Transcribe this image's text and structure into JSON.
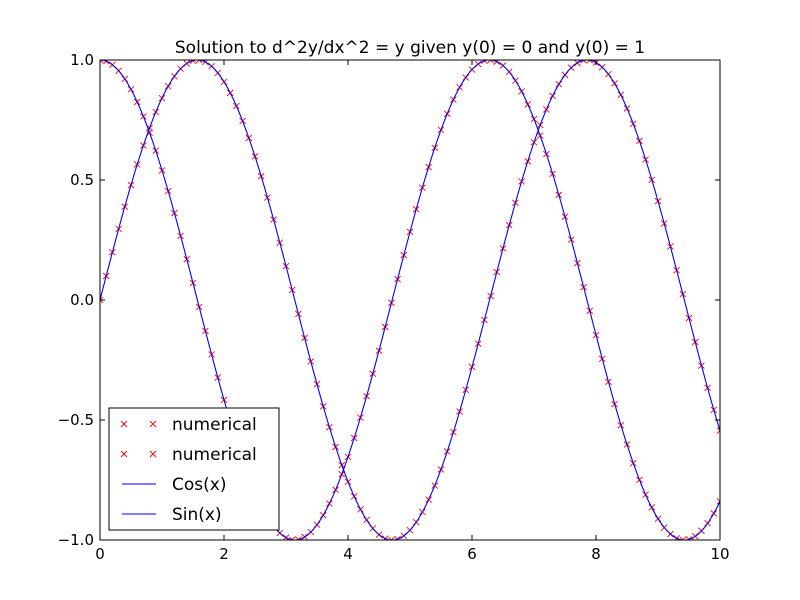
{
  "chart_data": {
    "type": "line",
    "title": "Solution to d^2y/dx^2 = y given y(0) = 0 and y(0) = 1",
    "xlabel": "",
    "ylabel": "",
    "xlim": [
      0,
      10
    ],
    "ylim": [
      -1.0,
      1.0
    ],
    "xticks": [
      "0",
      "2",
      "4",
      "6",
      "8",
      "10"
    ],
    "yticks": [
      "−1.0",
      "−0.5",
      "0.0",
      "0.5",
      "1.0"
    ],
    "grid": false,
    "legend_position": "lower-left",
    "series": [
      {
        "name": "numerical",
        "style": "markers",
        "marker": "x",
        "color": "#ff0000",
        "x": [
          0,
          0.1,
          0.2,
          0.3,
          0.4,
          0.5,
          0.6,
          0.7,
          0.8,
          0.9,
          1,
          1.1,
          1.2,
          1.3,
          1.4,
          1.5,
          1.6,
          1.7,
          1.8,
          1.9,
          2,
          2.1,
          2.2,
          2.3,
          2.4,
          2.5,
          2.6,
          2.7,
          2.8,
          2.9,
          3,
          3.1,
          3.2,
          3.3,
          3.4,
          3.5,
          3.6,
          3.7,
          3.8,
          3.9,
          4,
          4.1,
          4.2,
          4.3,
          4.4,
          4.5,
          4.6,
          4.7,
          4.8,
          4.9,
          5,
          5.1,
          5.2,
          5.3,
          5.4,
          5.5,
          5.6,
          5.7,
          5.8,
          5.9,
          6,
          6.1,
          6.2,
          6.3,
          6.4,
          6.5,
          6.6,
          6.7,
          6.8,
          6.9,
          7,
          7.1,
          7.2,
          7.3,
          7.4,
          7.5,
          7.6,
          7.7,
          7.8,
          7.9,
          8,
          8.1,
          8.2,
          8.3,
          8.4,
          8.5,
          8.6,
          8.7,
          8.8,
          8.9,
          9,
          9.1,
          9.2,
          9.3,
          9.4,
          9.5,
          9.6,
          9.7,
          9.8,
          9.9,
          10
        ],
        "y": [
          1,
          0.995,
          0.98,
          0.955,
          0.921,
          0.878,
          0.825,
          0.765,
          0.697,
          0.622,
          0.54,
          0.454,
          0.362,
          0.267,
          0.17,
          0.071,
          -0.029,
          -0.129,
          -0.227,
          -0.323,
          -0.416,
          -0.505,
          -0.589,
          -0.666,
          -0.737,
          -0.801,
          -0.857,
          -0.904,
          -0.942,
          -0.971,
          -0.99,
          -0.999,
          -0.998,
          -0.987,
          -0.967,
          -0.936,
          -0.897,
          -0.848,
          -0.791,
          -0.726,
          -0.654,
          -0.575,
          -0.49,
          -0.401,
          -0.307,
          -0.211,
          -0.112,
          -0.012,
          0.087,
          0.187,
          0.284,
          0.378,
          0.468,
          0.554,
          0.634,
          0.709,
          0.776,
          0.835,
          0.886,
          0.927,
          0.96,
          0.983,
          0.997,
          1,
          0.993,
          0.977,
          0.951,
          0.914,
          0.869,
          0.815,
          0.754,
          0.685,
          0.608,
          0.526,
          0.438,
          0.347,
          0.252,
          0.154,
          0.054,
          -0.045,
          -0.146,
          -0.245,
          -0.341,
          -0.434,
          -0.522,
          -0.602,
          -0.68,
          -0.749,
          -0.811,
          -0.864,
          -0.911,
          -0.948,
          -0.975,
          -0.993,
          -0.999,
          -0.997,
          -0.984,
          -0.962,
          -0.93,
          -0.889,
          -0.839
        ]
      },
      {
        "name": "numerical",
        "style": "markers",
        "marker": "x",
        "color": "#ff0000",
        "x": [
          0,
          0.1,
          0.2,
          0.3,
          0.4,
          0.5,
          0.6,
          0.7,
          0.8,
          0.9,
          1,
          1.1,
          1.2,
          1.3,
          1.4,
          1.5,
          1.6,
          1.7,
          1.8,
          1.9,
          2,
          2.1,
          2.2,
          2.3,
          2.4,
          2.5,
          2.6,
          2.7,
          2.8,
          2.9,
          3,
          3.1,
          3.2,
          3.3,
          3.4,
          3.5,
          3.6,
          3.7,
          3.8,
          3.9,
          4,
          4.1,
          4.2,
          4.3,
          4.4,
          4.5,
          4.6,
          4.7,
          4.8,
          4.9,
          5,
          5.1,
          5.2,
          5.3,
          5.4,
          5.5,
          5.6,
          5.7,
          5.8,
          5.9,
          6,
          6.1,
          6.2,
          6.3,
          6.4,
          6.5,
          6.6,
          6.7,
          6.8,
          6.9,
          7,
          7.1,
          7.2,
          7.3,
          7.4,
          7.5,
          7.6,
          7.7,
          7.8,
          7.9,
          8,
          8.1,
          8.2,
          8.3,
          8.4,
          8.5,
          8.6,
          8.7,
          8.8,
          8.9,
          9,
          9.1,
          9.2,
          9.3,
          9.4,
          9.5,
          9.6,
          9.7,
          9.8,
          9.9,
          10
        ],
        "y": [
          0,
          0.1,
          0.199,
          0.296,
          0.389,
          0.479,
          0.565,
          0.644,
          0.717,
          0.783,
          0.841,
          0.891,
          0.932,
          0.964,
          0.985,
          0.997,
          1,
          0.992,
          0.974,
          0.946,
          0.909,
          0.863,
          0.808,
          0.746,
          0.675,
          0.598,
          0.516,
          0.427,
          0.335,
          0.239,
          0.141,
          0.042,
          -0.058,
          -0.158,
          -0.256,
          -0.351,
          -0.443,
          -0.53,
          -0.612,
          -0.688,
          -0.757,
          -0.818,
          -0.872,
          -0.916,
          -0.952,
          -0.978,
          -0.994,
          -1,
          -0.996,
          -0.982,
          -0.959,
          -0.926,
          -0.883,
          -0.832,
          -0.773,
          -0.706,
          -0.631,
          -0.551,
          -0.465,
          -0.374,
          -0.279,
          -0.182,
          -0.083,
          0.017,
          0.117,
          0.215,
          0.312,
          0.405,
          0.494,
          0.578,
          0.657,
          0.729,
          0.794,
          0.851,
          0.899,
          0.938,
          0.968,
          0.988,
          0.999,
          0.999,
          0.989,
          0.97,
          0.941,
          0.903,
          0.855,
          0.798,
          0.734,
          0.663,
          0.585,
          0.501,
          0.412,
          0.319,
          0.223,
          0.124,
          0.024,
          -0.075,
          -0.175,
          -0.273,
          -0.366,
          -0.458,
          -0.544
        ]
      },
      {
        "name": "Cos(x)",
        "style": "line",
        "color": "#0000ff",
        "function": "cos"
      },
      {
        "name": "Sin(x)",
        "style": "line",
        "color": "#0000ff",
        "function": "sin"
      }
    ]
  }
}
